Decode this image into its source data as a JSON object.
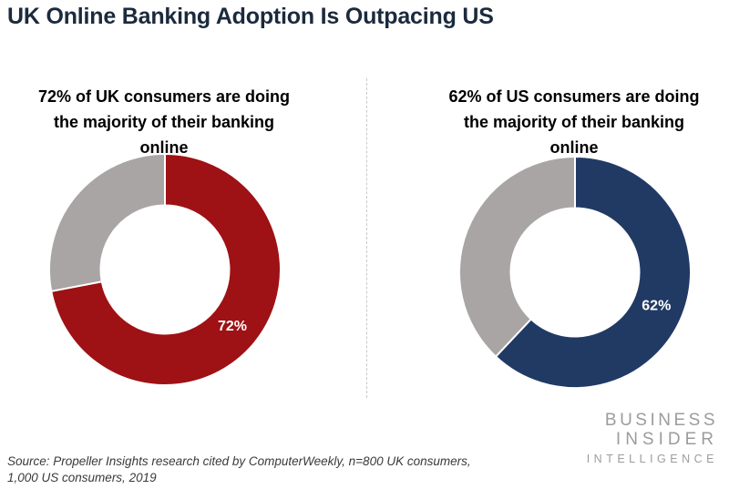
{
  "header": {
    "title": "UK Online Banking Adoption Is Outpacing US"
  },
  "chart_data": [
    {
      "type": "pie",
      "subtype": "donut",
      "country": "UK",
      "title": "72% of UK consumers are doing the majority of their banking online",
      "title_lines": [
        "72% of UK consumers are doing",
        "the majority of their banking",
        "online"
      ],
      "values": [
        72,
        28
      ],
      "slice_labels": [
        "72%",
        ""
      ],
      "colors": [
        "#9e1114",
        "#a8a5a4"
      ],
      "label_color": "#ffffff",
      "start_angle_deg": 0,
      "direction": "clockwise",
      "legend": "none"
    },
    {
      "type": "pie",
      "subtype": "donut",
      "country": "US",
      "title": "62% of US consumers are doing the majority of their banking online",
      "title_lines": [
        "62% of US consumers are doing",
        "the majority of their banking",
        "online"
      ],
      "values": [
        62,
        38
      ],
      "slice_labels": [
        "62%",
        ""
      ],
      "colors": [
        "#203a64",
        "#a8a5a4"
      ],
      "label_color": "#ffffff",
      "start_angle_deg": 0,
      "direction": "clockwise",
      "legend": "none"
    }
  ],
  "footer": {
    "source_lines": [
      "Source: Propeller Insights research cited by ComputerWeekly, n=800 UK consumers,",
      "1,000 US consumers, 2019"
    ],
    "logo_lines": [
      "BUSINESS",
      "INSIDER",
      "INTELLIGENCE"
    ]
  },
  "style": {
    "title_color": "#1b2a3d",
    "divider_color": "#c9c9c9",
    "logo_color": "#9c9c9c"
  }
}
